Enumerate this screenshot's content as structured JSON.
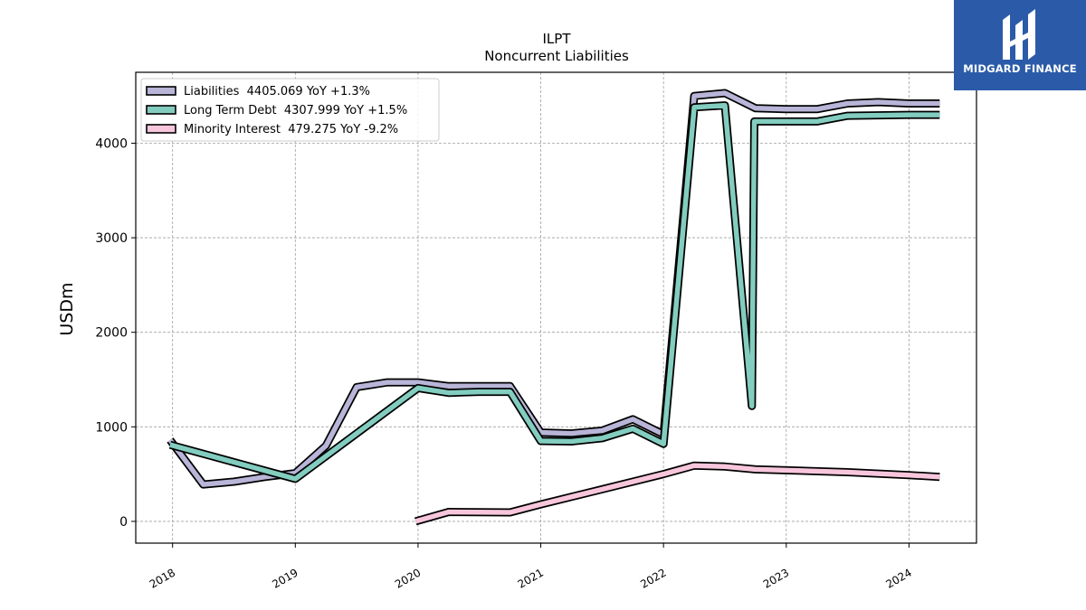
{
  "chart_data": {
    "type": "line",
    "title": "ILPT",
    "subtitle": "Noncurrent  Liabilities",
    "ylabel": "USDm",
    "xlabel": "",
    "xlim": [
      2017.7,
      2024.55
    ],
    "ylim": [
      -230,
      4750
    ],
    "yticks": [
      0,
      1000,
      2000,
      3000,
      4000
    ],
    "xticks": [
      "2018",
      "2019",
      "2020",
      "2021",
      "2022",
      "2023",
      "2024"
    ],
    "grid": true,
    "legend_position": "top-left",
    "series": [
      {
        "name": "Liabilities",
        "legend": "Liabilities  4405.069 YoY +1.3%",
        "color": "#b8b5d8",
        "points": [
          [
            2017.98,
            860
          ],
          [
            2018.25,
            390
          ],
          [
            2018.5,
            420
          ],
          [
            2018.75,
            470
          ],
          [
            2019.0,
            510
          ],
          [
            2019.25,
            800
          ],
          [
            2019.5,
            1420
          ],
          [
            2019.75,
            1470
          ],
          [
            2020.0,
            1470
          ],
          [
            2020.25,
            1430
          ],
          [
            2020.5,
            1430
          ],
          [
            2020.75,
            1430
          ],
          [
            2021.0,
            940
          ],
          [
            2021.25,
            930
          ],
          [
            2021.5,
            960
          ],
          [
            2021.75,
            1080
          ],
          [
            2022.0,
            920
          ],
          [
            2022.25,
            4500
          ],
          [
            2022.5,
            4530
          ],
          [
            2022.75,
            4370
          ],
          [
            2023.0,
            4360
          ],
          [
            2023.25,
            4360
          ],
          [
            2023.5,
            4420
          ],
          [
            2023.75,
            4435
          ],
          [
            2024.0,
            4420
          ],
          [
            2024.25,
            4420
          ]
        ]
      },
      {
        "name": "Long Term Debt",
        "legend": "Long Term Debt  4307.999 YoY +1.5%",
        "color": "#82cdbf",
        "points": [
          [
            2017.98,
            810
          ],
          [
            2019.0,
            450
          ],
          [
            2020.0,
            1410
          ],
          [
            2020.25,
            1360
          ],
          [
            2020.5,
            1370
          ],
          [
            2020.75,
            1370
          ],
          [
            2021.0,
            850
          ],
          [
            2021.25,
            845
          ],
          [
            2021.5,
            880
          ],
          [
            2021.75,
            980
          ],
          [
            2022.0,
            820
          ],
          [
            2022.25,
            4380
          ],
          [
            2022.5,
            4400
          ],
          [
            2022.72,
            1220
          ],
          [
            2022.74,
            4230
          ],
          [
            2023.0,
            4230
          ],
          [
            2023.25,
            4230
          ],
          [
            2023.5,
            4290
          ],
          [
            2023.75,
            4295
          ],
          [
            2024.0,
            4300
          ],
          [
            2024.25,
            4300
          ]
        ]
      },
      {
        "name": "Minority Interest",
        "legend": "Minority Interest  479.275 YoY -9.2%",
        "color": "#f7c6dc",
        "points": [
          [
            2019.98,
            0
          ],
          [
            2020.25,
            100
          ],
          [
            2020.75,
            95
          ],
          [
            2021.0,
            180
          ],
          [
            2021.5,
            340
          ],
          [
            2022.0,
            500
          ],
          [
            2022.25,
            590
          ],
          [
            2022.5,
            580
          ],
          [
            2022.75,
            550
          ],
          [
            2023.0,
            540
          ],
          [
            2023.5,
            520
          ],
          [
            2024.0,
            490
          ],
          [
            2024.25,
            470
          ]
        ]
      }
    ]
  },
  "brand": {
    "name": "MIDGARD FINANCE",
    "background": "#2b5ba8"
  }
}
